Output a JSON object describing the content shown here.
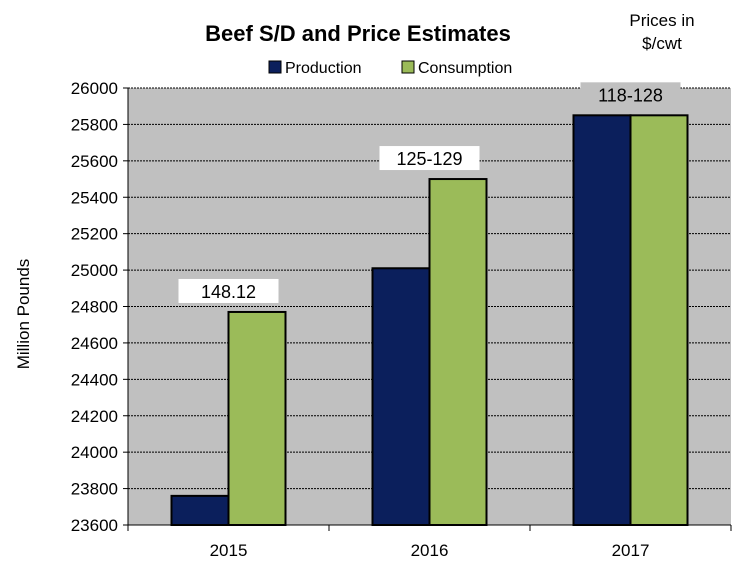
{
  "colors": {
    "plot_bg": "#c0c0c0",
    "production": "#0b1f5c",
    "consumption": "#9bbb59",
    "gridline": "#000000",
    "annotation_bg_top": "#c0c0c0"
  },
  "chart_data": {
    "type": "bar",
    "title": "Beef S/D and Price Estimates",
    "price_note": [
      "Prices in",
      "$/cwt"
    ],
    "ylabel": "Million Pounds",
    "xlabel": "",
    "categories": [
      "2015",
      "2016",
      "2017"
    ],
    "series": [
      {
        "name": "Production",
        "values": [
          23760,
          25010,
          25850
        ]
      },
      {
        "name": "Consumption",
        "values": [
          24770,
          25500,
          25850
        ]
      }
    ],
    "price_labels": [
      "148.12",
      "125-129",
      "118-128"
    ],
    "ylim": [
      23600,
      26000
    ],
    "yticks": [
      23600,
      23800,
      24000,
      24200,
      24400,
      24600,
      24800,
      25000,
      25200,
      25400,
      25600,
      25800,
      26000
    ],
    "grid": true,
    "legend": "top-center"
  }
}
